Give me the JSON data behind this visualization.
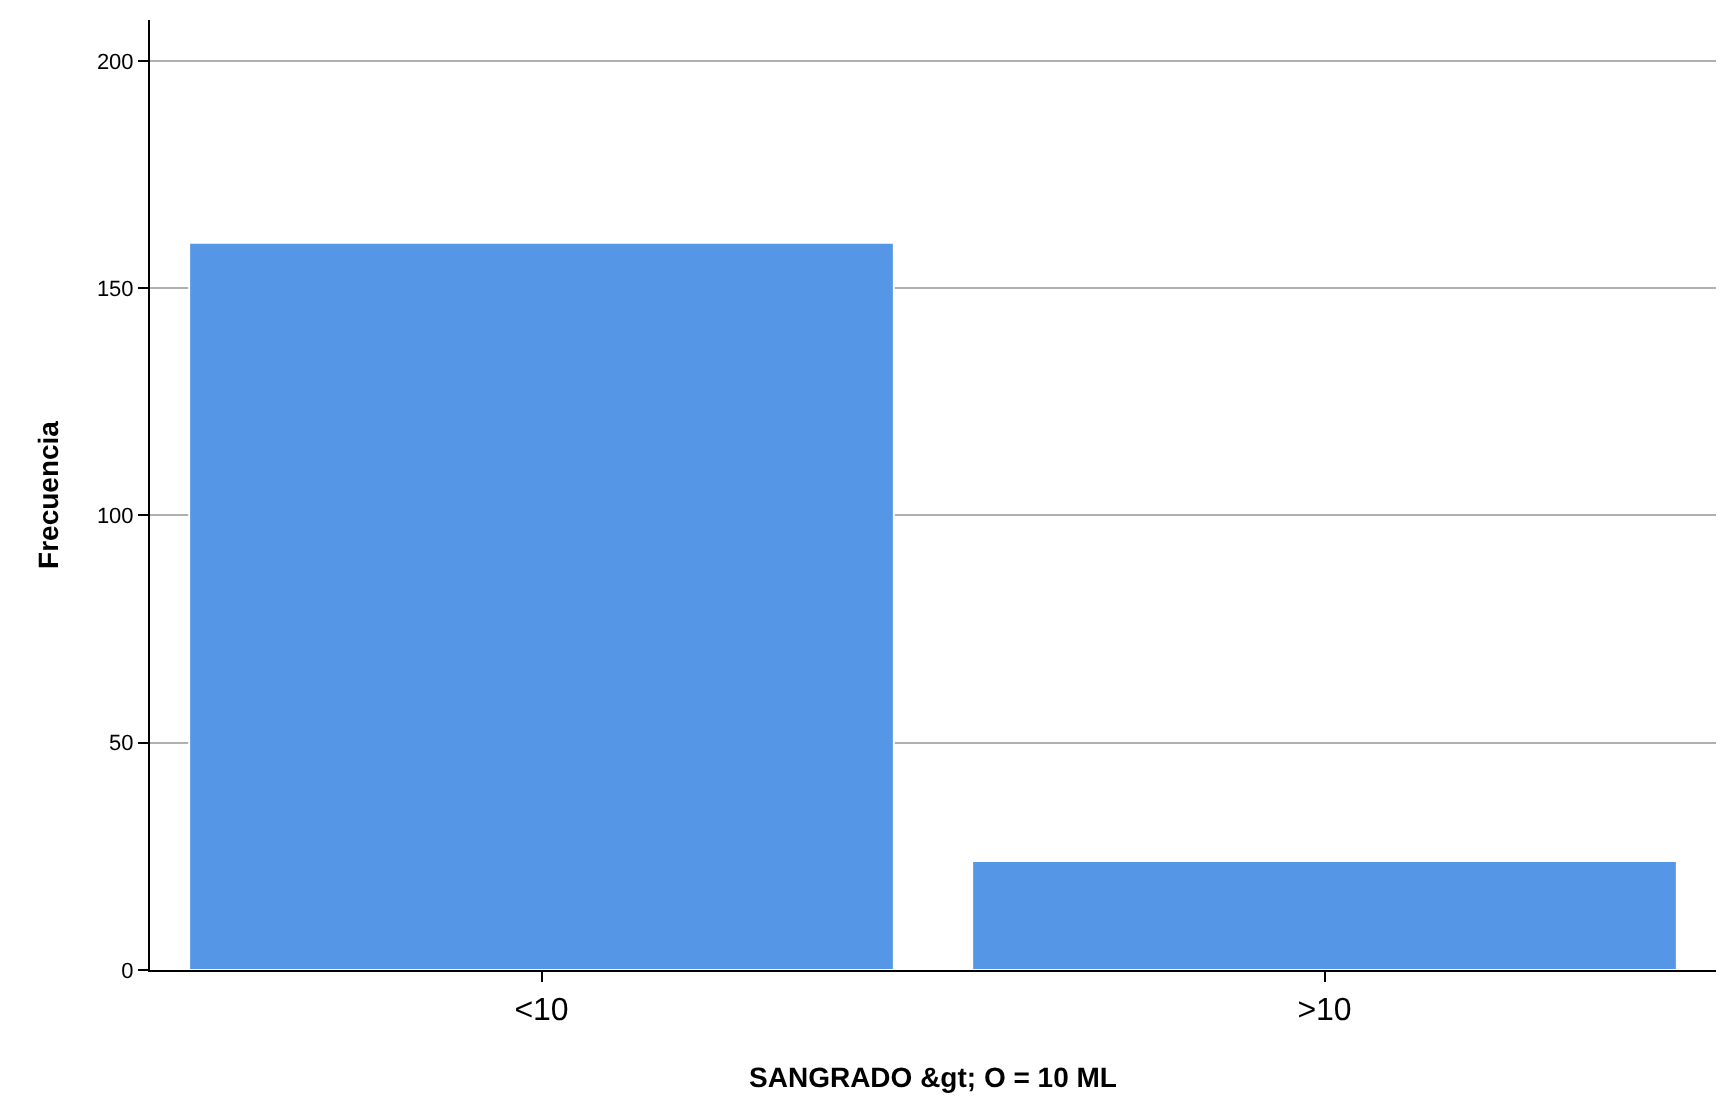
{
  "chart_data": {
    "type": "bar",
    "xlabel": "SANGRADO &gt; O = 10 ML",
    "ylabel": "Frecuencia",
    "categories": [
      "<10",
      ">10"
    ],
    "values": [
      160,
      24
    ],
    "color": "#5596e6",
    "ylim": [
      0,
      209
    ],
    "yticks": [
      0,
      50,
      100,
      150,
      200
    ],
    "grid": "y"
  }
}
